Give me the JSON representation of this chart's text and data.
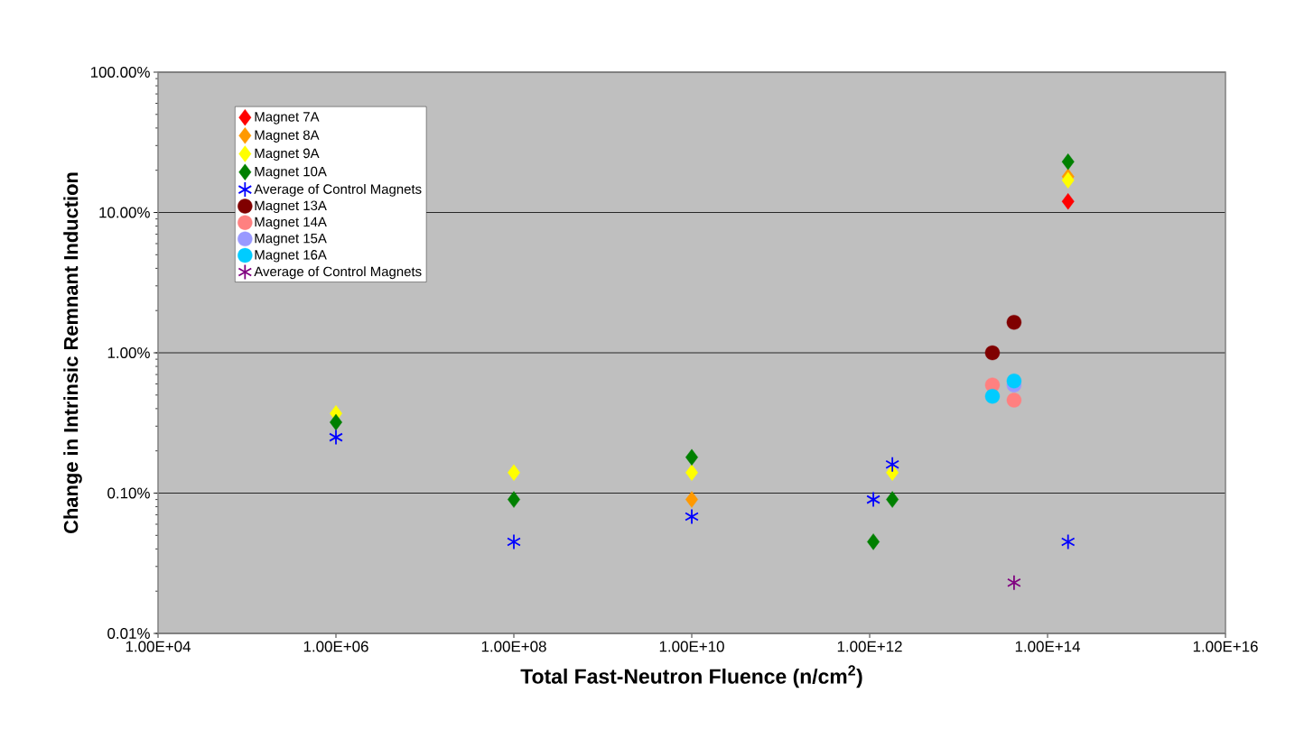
{
  "chart_data": {
    "type": "scatter",
    "xlabel": "Total Fast-Neutron Fluence (n/cm$^{2}$)",
    "ylabel": "Change in Intrinsic Remnant Induction",
    "log": "xy",
    "grid": "y",
    "legend": "top left",
    "xlim": [
      10000.0,
      1e+16
    ],
    "ylim": [
      0.01,
      100
    ],
    "xticks": [
      {
        "value": 10000.0,
        "label": "1.00E+04"
      },
      {
        "value": 1000000.0,
        "label": "1.00E+06"
      },
      {
        "value": 100000000.0,
        "label": "1.00E+08"
      },
      {
        "value": 10000000000.0,
        "label": "1.00E+10"
      },
      {
        "value": 1000000000000.0,
        "label": "1.00E+12"
      },
      {
        "value": 100000000000000.0,
        "label": "1.00E+14"
      },
      {
        "value": 1e+16,
        "label": "1.00E+16"
      }
    ],
    "yticks": [
      {
        "value": 0.01,
        "label": "0.01%"
      },
      {
        "value": 0.1,
        "label": "0.10%"
      },
      {
        "value": 1,
        "label": "1.00%"
      },
      {
        "value": 10,
        "label": "10.00%"
      },
      {
        "value": 100,
        "label": "100.00%"
      }
    ],
    "series": [
      {
        "name": "Magnet 7A",
        "color": "#ff0000",
        "marker": "diamond",
        "x": [
          170000000000000.0
        ],
        "values": [
          12
        ]
      },
      {
        "name": "Magnet 8A",
        "color": "#ff9900",
        "marker": "diamond",
        "x": [
          10000000000.0,
          170000000000000.0
        ],
        "values": [
          0.09,
          18
        ]
      },
      {
        "name": "Magnet 9A",
        "color": "#ffff00",
        "marker": "diamond",
        "x": [
          1000000.0,
          100000000.0,
          10000000000.0,
          1800000000000.0,
          170000000000000.0
        ],
        "values": [
          0.37,
          0.14,
          0.14,
          0.14,
          17
        ]
      },
      {
        "name": "Magnet 10A",
        "color": "#008000",
        "marker": "diamond",
        "x": [
          1000000.0,
          100000000.0,
          10000000000.0,
          1100000000000.0,
          1800000000000.0,
          170000000000000.0
        ],
        "values": [
          0.32,
          0.09,
          0.18,
          0.045,
          0.09,
          23
        ]
      },
      {
        "name": "Average of Control Magnets",
        "color": "#0000ff",
        "marker": "cross",
        "x": [
          1000000.0,
          100000000.0,
          10000000000.0,
          1100000000000.0,
          1800000000000.0,
          170000000000000.0
        ],
        "values": [
          0.25,
          0.045,
          0.068,
          0.09,
          0.16,
          0.045
        ]
      },
      {
        "name": "Magnet 13A",
        "color": "#800000",
        "marker": "circle",
        "x": [
          24000000000000.0,
          42000000000000.0
        ],
        "values": [
          1.0,
          1.65
        ]
      },
      {
        "name": "Magnet 14A",
        "color": "#ff8080",
        "marker": "circle",
        "x": [
          24000000000000.0,
          42000000000000.0
        ],
        "values": [
          0.59,
          0.46
        ]
      },
      {
        "name": "Magnet 15A",
        "color": "#9999ff",
        "marker": "circle",
        "x": [
          42000000000000.0
        ],
        "values": [
          0.59
        ]
      },
      {
        "name": "Magnet 16A",
        "color": "#00ccff",
        "marker": "circle",
        "x": [
          24000000000000.0,
          42000000000000.0
        ],
        "values": [
          0.49,
          0.63
        ]
      },
      {
        "name": "Average of Control Magnets",
        "color": "#800080",
        "marker": "cross",
        "x": [
          42000000000000.0
        ],
        "values": [
          0.023
        ]
      }
    ]
  }
}
